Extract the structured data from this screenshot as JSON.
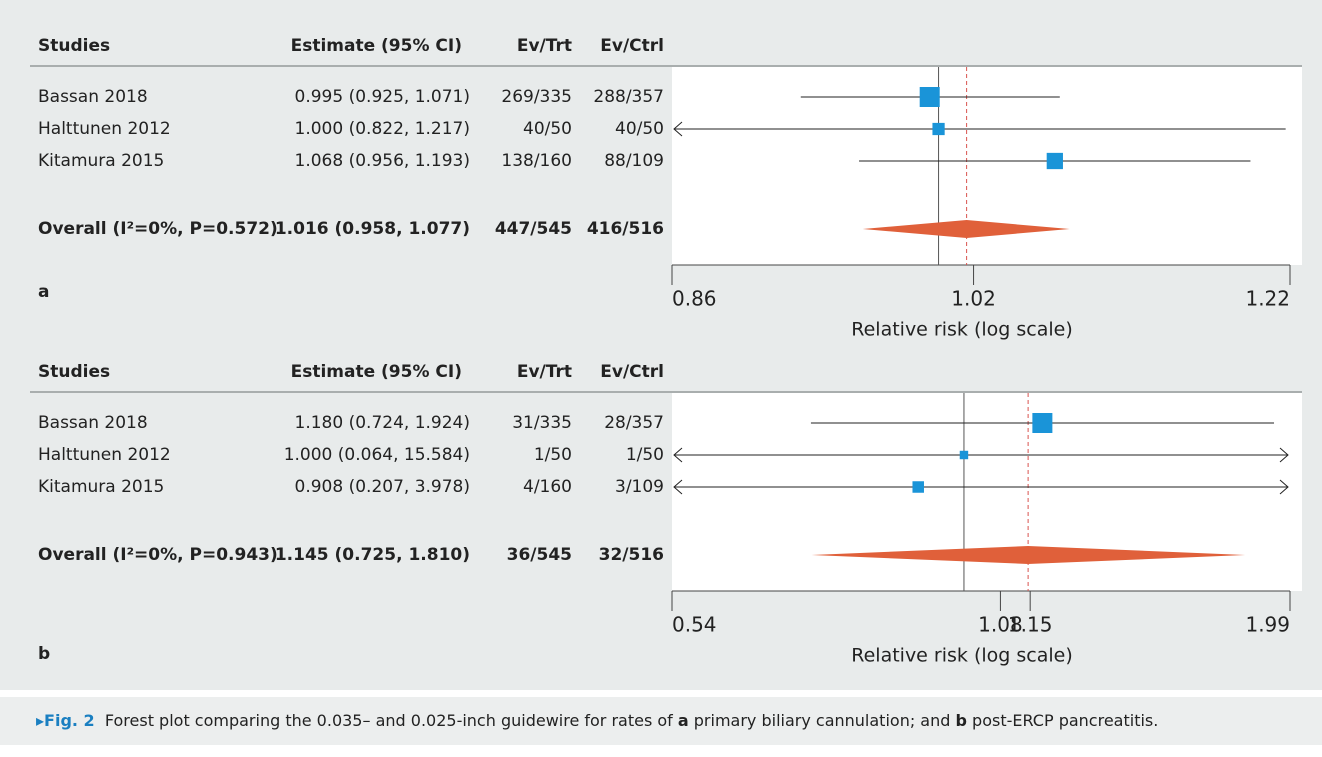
{
  "chart_data": [
    {
      "type": "forest",
      "panel_label": "a",
      "headers": [
        "Studies",
        "Estimate (95% CI)",
        "Ev/Trt",
        "Ev/Ctrl"
      ],
      "rows": [
        {
          "study": "Bassan 2018",
          "estimate": 0.995,
          "lower": 0.925,
          "upper": 1.071,
          "ci_label": "0.995 (0.925, 1.071)",
          "ev_trt": "269/335",
          "ev_ctrl": "288/357"
        },
        {
          "study": "Halttunen 2012",
          "estimate": 1.0,
          "lower": 0.822,
          "upper": 1.217,
          "ci_label": "1.000 (0.822, 1.217)",
          "ev_trt": "40/50",
          "ev_ctrl": "40/50"
        },
        {
          "study": "Kitamura 2015",
          "estimate": 1.068,
          "lower": 0.956,
          "upper": 1.193,
          "ci_label": "1.068 (0.956, 1.193)",
          "ev_trt": "138/160",
          "ev_ctrl": "88/109"
        }
      ],
      "overall": {
        "label": "Overall (I²=0%, P=0.572)",
        "estimate": 1.016,
        "lower": 0.958,
        "upper": 1.077,
        "ci_label": "1.016 (0.958, 1.077)",
        "ev_trt": "447/545",
        "ev_ctrl": "416/516"
      },
      "xlim": [
        0.86,
        1.22
      ],
      "xticks": [
        0.86,
        1.02,
        1.22
      ],
      "log_scale": true,
      "null_line": 1,
      "xlabel": "Relative risk (log scale)",
      "marker_color": "#1a94d8",
      "diamond_color": "#e0603a"
    },
    {
      "type": "forest",
      "panel_label": "b",
      "headers": [
        "Studies",
        "Estimate (95% CI)",
        "Ev/Trt",
        "Ev/Ctrl"
      ],
      "rows": [
        {
          "study": "Bassan 2018",
          "estimate": 1.18,
          "lower": 0.724,
          "upper": 1.924,
          "ci_label": "1.180 (0.724, 1.924)",
          "ev_trt": "31/335",
          "ev_ctrl": "28/357"
        },
        {
          "study": "Halttunen 2012",
          "estimate": 1.0,
          "lower": 0.064,
          "upper": 15.584,
          "ci_label": "1.000 (0.064, 15.584)",
          "ev_trt": "1/50",
          "ev_ctrl": "1/50"
        },
        {
          "study": "Kitamura 2015",
          "estimate": 0.908,
          "lower": 0.207,
          "upper": 3.978,
          "ci_label": "0.908 (0.207, 3.978)",
          "ev_trt": "4/160",
          "ev_ctrl": "3/109"
        }
      ],
      "overall": {
        "label": "Overall (I²=0%, P=0.943)",
        "estimate": 1.145,
        "lower": 0.725,
        "upper": 1.81,
        "ci_label": "1.145 (0.725, 1.810)",
        "ev_trt": "36/545",
        "ev_ctrl": "32/516"
      },
      "xlim": [
        0.54,
        1.99
      ],
      "xticks": [
        0.54,
        1.08,
        1.15,
        1.99
      ],
      "log_scale": true,
      "null_line": 1,
      "xlabel": "Relative risk (log scale)",
      "marker_color": "#1a94d8",
      "diamond_color": "#e0603a"
    }
  ],
  "caption": [
    {
      "text": "Fig. 2",
      "bold": true
    },
    {
      "text": "  Forest plot comparing the 0.035– and 0.025-inch guidewire for rates of ",
      "bold": false
    },
    {
      "text": "a",
      "bold": true
    },
    {
      "text": " primary biliary cannulation; and ",
      "bold": false
    },
    {
      "text": "b",
      "bold": true
    },
    {
      "text": " post-ERCP pancreatitis.",
      "bold": false
    }
  ]
}
